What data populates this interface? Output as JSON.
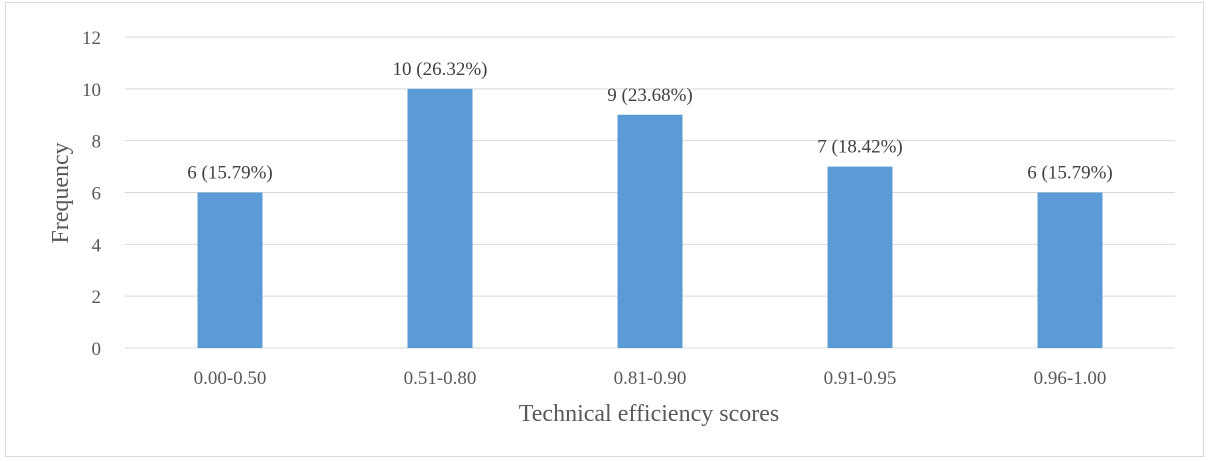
{
  "chart_data": {
    "type": "bar",
    "categories": [
      "0.00-0.50",
      "0.51-0.80",
      "0.81-0.90",
      "0.91-0.95",
      "0.96-1.00"
    ],
    "values": [
      6,
      10,
      9,
      7,
      6
    ],
    "data_labels": [
      "6 (15.79%)",
      "10 (26.32%)",
      "9 (23.68%)",
      "7 (18.42%)",
      "6 (15.79%)"
    ],
    "title": "",
    "xlabel": "Technical efficiency scores",
    "ylabel": "Frequency",
    "ylim": [
      0,
      12
    ],
    "yticks": [
      "0",
      "2",
      "4",
      "6",
      "8",
      "10",
      "12"
    ],
    "grid": true,
    "bar_color": "#5b9bd5",
    "grid_color": "#d9d9d9"
  }
}
